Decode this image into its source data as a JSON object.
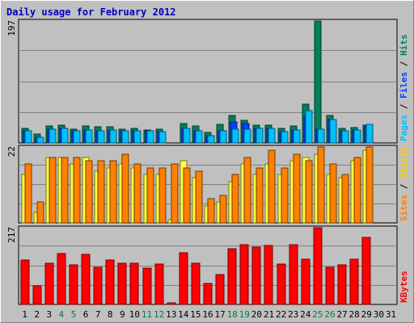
{
  "chart_data": {
    "type": "bar",
    "title": "Daily usage for February 2012",
    "categories": [
      "1",
      "2",
      "3",
      "4",
      "5",
      "6",
      "7",
      "8",
      "9",
      "10",
      "11",
      "12",
      "13",
      "14",
      "15",
      "16",
      "17",
      "18",
      "19",
      "20",
      "21",
      "22",
      "23",
      "24",
      "25",
      "26",
      "27",
      "28",
      "29",
      "30",
      "31"
    ],
    "weekend_days": [
      "4",
      "5",
      "11",
      "12",
      "18",
      "19",
      "25",
      "26"
    ],
    "panels": [
      {
        "id": "top",
        "ymax_label": "197",
        "ymax": 197,
        "legend": [
          {
            "text": "Pages",
            "color": "#00c0ff"
          },
          {
            "text": " / ",
            "color": "#000000"
          },
          {
            "text": "Files",
            "color": "#0040ff"
          },
          {
            "text": " / ",
            "color": "#000000"
          },
          {
            "text": "Hits",
            "color": "#008060"
          }
        ],
        "series": [
          {
            "name": "Hits",
            "color": "#00805c",
            "values": [
              24,
              15,
              28,
              29,
              22,
              28,
              26,
              26,
              22,
              24,
              21,
              22,
              0,
              31,
              28,
              17,
              30,
              45,
              37,
              29,
              29,
              24,
              28,
              62,
              197,
              45,
              23,
              25,
              29,
              0,
              0
            ]
          },
          {
            "name": "Files",
            "color": "#0040ff",
            "values": [
              20,
              9,
              22,
              23,
              20,
              21,
              20,
              21,
              19,
              19,
              19,
              18,
              0,
              24,
              19,
              12,
              19,
              34,
              31,
              24,
              24,
              18,
              21,
              43,
              22,
              38,
              20,
              21,
              27,
              0,
              0
            ]
          },
          {
            "name": "Pages",
            "color": "#00c0ff",
            "values": [
              20,
              9,
              22,
              23,
              20,
              21,
              20,
              21,
              19,
              19,
              19,
              18,
              0,
              24,
              19,
              12,
              19,
              22,
              22,
              24,
              24,
              18,
              21,
              52,
              22,
              38,
              20,
              21,
              30,
              0,
              0
            ]
          }
        ]
      },
      {
        "id": "mid",
        "ymax_label": "22",
        "ymax": 22,
        "legend": [
          {
            "text": "Sites",
            "color": "#ff8000"
          },
          {
            "text": " / ",
            "color": "#000000"
          },
          {
            "text": "Visits",
            "color": "#ffd000"
          }
        ],
        "series": [
          {
            "name": "Visits",
            "color": "#ffff40",
            "values": [
              14,
              3,
              19,
              19,
              17,
              19,
              15,
              16,
              17,
              16,
              14,
              14,
              1,
              18,
              13,
              5,
              6,
              12,
              17,
              14,
              17,
              14,
              18,
              19,
              20,
              14,
              13,
              18,
              21,
              0,
              0
            ]
          },
          {
            "name": "Sites",
            "color": "#ff8000",
            "values": [
              17,
              6,
              19,
              19,
              19,
              18,
              18,
              18,
              20,
              17,
              16,
              16,
              17,
              16,
              15,
              7,
              8,
              14,
              19,
              16,
              21,
              16,
              20,
              18,
              22,
              17,
              14,
              19,
              22,
              0,
              0
            ]
          }
        ]
      },
      {
        "id": "bot",
        "ymax_label": "217",
        "ymax": 217,
        "legend": [
          {
            "text": "KBytes",
            "color": "#ff0000"
          }
        ],
        "series": [
          {
            "name": "KBytes",
            "color": "#ff0000",
            "values": [
              125,
              52,
              116,
              143,
              112,
              142,
              106,
              126,
              116,
              116,
              103,
              115,
              4,
              146,
              116,
              60,
              85,
              157,
              168,
              162,
              167,
              114,
              168,
              127,
              217,
              106,
              113,
              129,
              190,
              0,
              0
            ]
          }
        ]
      }
    ]
  }
}
